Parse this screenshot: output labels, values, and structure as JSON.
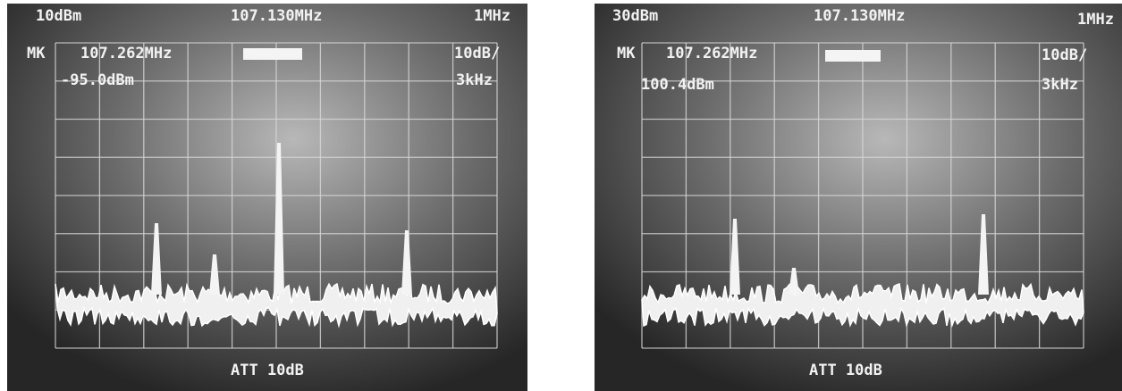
{
  "panels": [
    {
      "ref_level": "10dBm",
      "center_freq": "107.130MHz",
      "span": "1MHz",
      "marker_label": "MK",
      "marker_freq": "107.262MHz",
      "scale": "10dB/",
      "marker_level": "-95.0dBm",
      "rbw": "3kHz",
      "attenuation": "ATT 10dB"
    },
    {
      "ref_level": "30dBm",
      "center_freq": "107.130MHz",
      "span": "1MHz",
      "marker_label": "MK",
      "marker_freq": "107.262MHz",
      "scale": "10dB/",
      "marker_level": "100.4dBm",
      "rbw": "3kHz",
      "attenuation": "ATT 10dB"
    }
  ]
}
